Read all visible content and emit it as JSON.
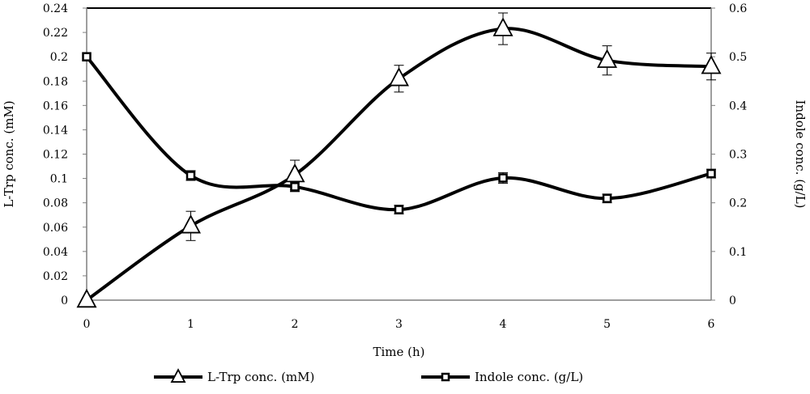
{
  "chart_data": {
    "type": "line",
    "x": [
      0,
      1,
      2,
      3,
      4,
      5,
      6
    ],
    "xlabel": "Time (h)",
    "xlim": [
      0,
      6
    ],
    "x_ticks": [
      "0",
      "1",
      "2",
      "3",
      "4",
      "5",
      "6"
    ],
    "ylabel_left": "L-Trp conc. (mM)",
    "ylim_left": [
      0,
      0.24
    ],
    "y_ticks_left": [
      "0",
      "0.02",
      "0.04",
      "0.06",
      "0.08",
      "0.1",
      "0.12",
      "0.14",
      "0.16",
      "0.18",
      "0.2",
      "0.22",
      "0.24"
    ],
    "ylabel_right": "Indole conc. (g/L)",
    "ylim_right": [
      0,
      0.6
    ],
    "y_ticks_right": [
      "0",
      "0.1",
      "0.2",
      "0.3",
      "0.4",
      "0.5",
      "0.6"
    ],
    "grid": false,
    "legend_position": "bottom",
    "series": [
      {
        "name": "L-Trp conc. (mM)",
        "axis": "left",
        "marker": "triangle",
        "values": [
          0,
          0.061,
          0.103,
          0.182,
          0.223,
          0.197,
          0.192
        ],
        "errors": [
          0,
          0.012,
          0.012,
          0.011,
          0.013,
          0.012,
          0.011
        ]
      },
      {
        "name": "Indole conc. (g/L)",
        "axis": "right",
        "marker": "square",
        "values": [
          0.5,
          0.256,
          0.233,
          0.186,
          0.251,
          0.209,
          0.26
        ],
        "errors": [
          0,
          0.01,
          0.01,
          0.009,
          0.011,
          0.009,
          0.009
        ]
      }
    ],
    "colors": {
      "line": "#000000",
      "axis": "#7f7f7f",
      "marker_fill": "#ffffff"
    }
  }
}
